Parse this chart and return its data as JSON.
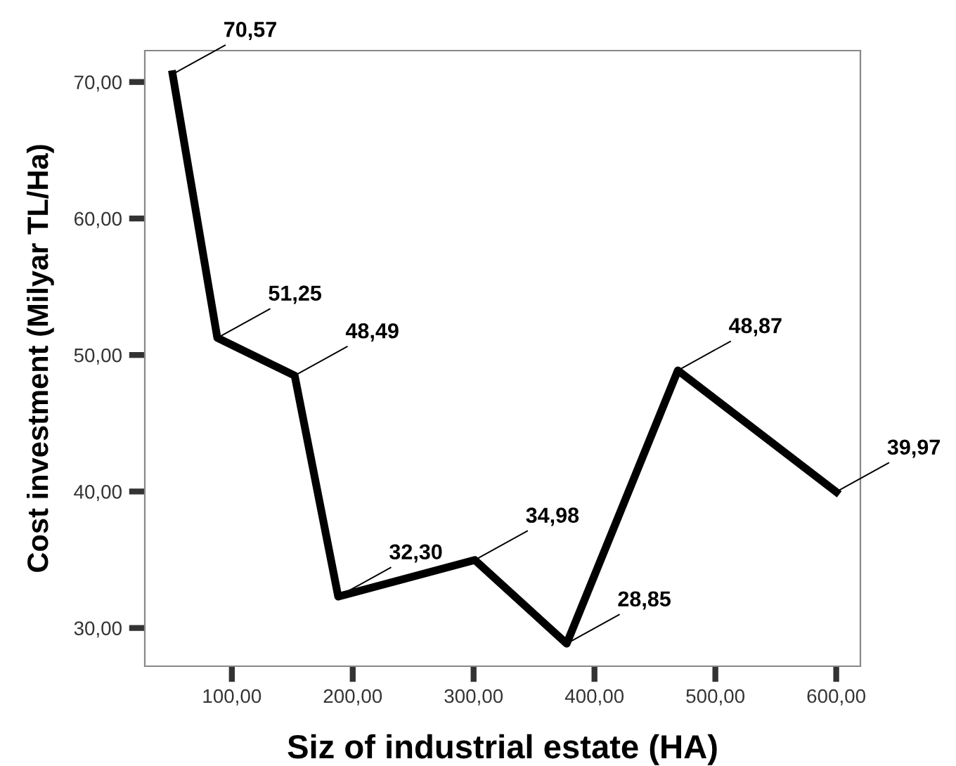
{
  "chart_data": {
    "type": "line",
    "xlabel": "Siz of industrial estate (HA)",
    "ylabel": "Cost investment (Milyar TL/Ha)",
    "x": [
      51,
      88,
      152,
      188,
      301,
      377,
      469,
      600
    ],
    "series": [
      {
        "color": "#000000",
        "values": [
          70.57,
          51.25,
          48.49,
          32.3,
          34.98,
          28.85,
          48.87,
          39.97
        ],
        "value_labels": [
          "70,57",
          "51,25",
          "48,49",
          "32,30",
          "34,98",
          "28,85",
          "48,87",
          "39,97"
        ]
      }
    ],
    "xlim": [
      28,
      620
    ],
    "ylim": [
      27.2,
      72.3
    ],
    "xticks": [
      {
        "value": 100,
        "label": "100,00"
      },
      {
        "value": 200,
        "label": "200,00"
      },
      {
        "value": 300,
        "label": "300,00"
      },
      {
        "value": 400,
        "label": "400,00"
      },
      {
        "value": 500,
        "label": "500,00"
      },
      {
        "value": 600,
        "label": "600,00"
      }
    ],
    "yticks": [
      {
        "value": 30,
        "label": "30,00"
      },
      {
        "value": 40,
        "label": "40,00"
      },
      {
        "value": 50,
        "label": "50,00"
      },
      {
        "value": 60,
        "label": "60,00"
      },
      {
        "value": 70,
        "label": "70,00"
      }
    ],
    "grid": false,
    "legend": false,
    "line_style": "solid",
    "marker": "none"
  }
}
